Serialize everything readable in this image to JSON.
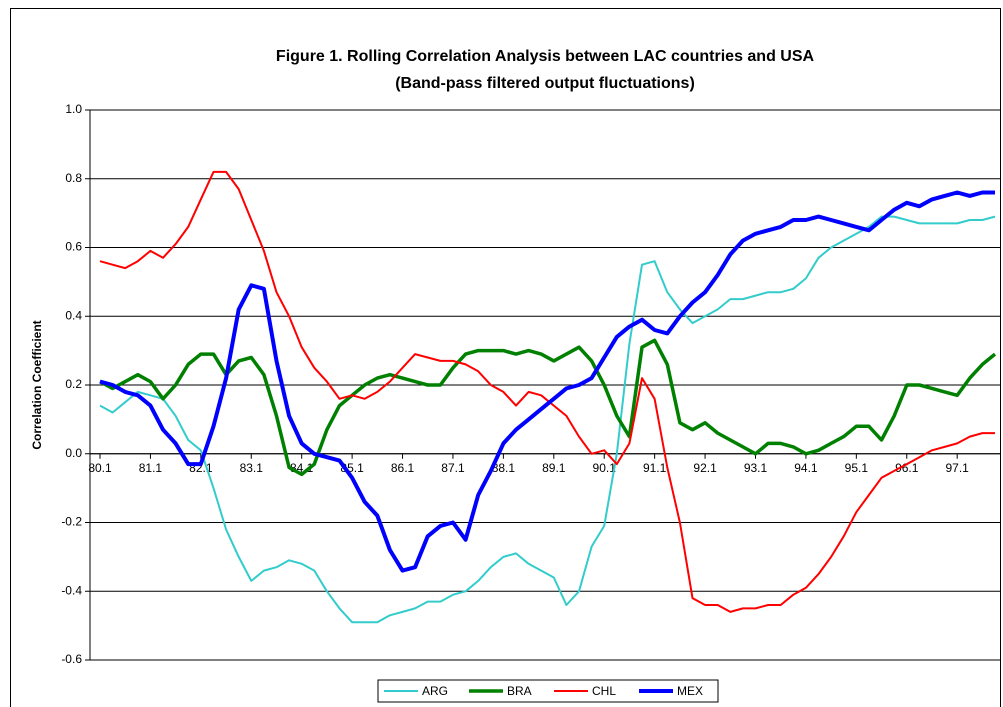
{
  "chart_data": {
    "type": "line",
    "title": "Figure 1. Rolling Correlation Analysis between LAC countries and USA",
    "subtitle": "(Band-pass filtered output fluctuations)",
    "y_label": "Correlation Coefficient",
    "categories": [
      "80.1",
      null,
      null,
      null,
      "81.1",
      null,
      null,
      null,
      "82.1",
      null,
      null,
      null,
      "83.1",
      null,
      null,
      null,
      "84.1",
      null,
      null,
      null,
      "85.1",
      null,
      null,
      null,
      "86.1",
      null,
      null,
      null,
      "87.1",
      null,
      null,
      null,
      "88.1",
      null,
      null,
      null,
      "89.1",
      null,
      null,
      null,
      "90.1",
      null,
      null,
      null,
      "91.1",
      null,
      null,
      null,
      "92.1",
      null,
      null,
      null,
      "93.1",
      null,
      null,
      null,
      "94.1",
      null,
      null,
      null,
      "95.1",
      null,
      null,
      null,
      "96.1",
      null,
      null,
      null,
      "97.1",
      null,
      null,
      null
    ],
    "series": [
      {
        "name": "ARG",
        "color": "#33cccc",
        "width": 2,
        "values": [
          0.14,
          0.12,
          0.15,
          0.18,
          0.17,
          0.16,
          0.11,
          0.04,
          0.01,
          -0.1,
          -0.22,
          -0.3,
          -0.37,
          -0.34,
          -0.33,
          -0.31,
          -0.32,
          -0.34,
          -0.4,
          -0.45,
          -0.49,
          -0.49,
          -0.49,
          -0.47,
          -0.46,
          -0.45,
          -0.43,
          -0.43,
          -0.41,
          -0.4,
          -0.37,
          -0.33,
          -0.3,
          -0.29,
          -0.32,
          -0.34,
          -0.36,
          -0.44,
          -0.4,
          -0.27,
          -0.21,
          0.0,
          0.32,
          0.55,
          0.56,
          0.47,
          0.42,
          0.38,
          0.4,
          0.42,
          0.45,
          0.45,
          0.46,
          0.47,
          0.47,
          0.48,
          0.51,
          0.57,
          0.6,
          0.62,
          0.64,
          0.66,
          0.69,
          0.69,
          0.68,
          0.67,
          0.67,
          0.67,
          0.67,
          0.68,
          0.68,
          0.69
        ]
      },
      {
        "name": "BRA",
        "color": "#008000",
        "width": 3.5,
        "values": [
          0.21,
          0.19,
          0.21,
          0.23,
          0.21,
          0.16,
          0.2,
          0.26,
          0.29,
          0.29,
          0.23,
          0.27,
          0.28,
          0.23,
          0.11,
          -0.04,
          -0.06,
          -0.03,
          0.07,
          0.14,
          0.17,
          0.2,
          0.22,
          0.23,
          0.22,
          0.21,
          0.2,
          0.2,
          0.25,
          0.29,
          0.3,
          0.3,
          0.3,
          0.29,
          0.3,
          0.29,
          0.27,
          0.29,
          0.31,
          0.27,
          0.2,
          0.11,
          0.05,
          0.31,
          0.33,
          0.26,
          0.09,
          0.07,
          0.09,
          0.06,
          0.04,
          0.02,
          0.0,
          0.03,
          0.03,
          0.02,
          0.0,
          0.01,
          0.03,
          0.05,
          0.08,
          0.08,
          0.04,
          0.11,
          0.2,
          0.2,
          0.19,
          0.18,
          0.17,
          0.22,
          0.26,
          0.29
        ]
      },
      {
        "name": "CHL",
        "color": "#ff0000",
        "width": 2,
        "values": [
          0.56,
          0.55,
          0.54,
          0.56,
          0.59,
          0.57,
          0.61,
          0.66,
          0.74,
          0.82,
          0.82,
          0.77,
          0.68,
          0.59,
          0.47,
          0.4,
          0.31,
          0.25,
          0.21,
          0.16,
          0.17,
          0.16,
          0.18,
          0.21,
          0.25,
          0.29,
          0.28,
          0.27,
          0.27,
          0.26,
          0.24,
          0.2,
          0.18,
          0.14,
          0.18,
          0.17,
          0.14,
          0.11,
          0.05,
          0.0,
          0.01,
          -0.03,
          0.03,
          0.22,
          0.16,
          -0.04,
          -0.2,
          -0.42,
          -0.44,
          -0.44,
          -0.46,
          -0.45,
          -0.45,
          -0.44,
          -0.44,
          -0.41,
          -0.39,
          -0.35,
          -0.3,
          -0.24,
          -0.17,
          -0.12,
          -0.07,
          -0.05,
          -0.03,
          -0.01,
          0.01,
          0.02,
          0.03,
          0.05,
          0.06,
          0.06
        ]
      },
      {
        "name": "MEX",
        "color": "#0000ff",
        "width": 4,
        "values": [
          0.21,
          0.2,
          0.18,
          0.17,
          0.14,
          0.07,
          0.03,
          -0.03,
          -0.03,
          0.08,
          0.22,
          0.42,
          0.49,
          0.48,
          0.27,
          0.11,
          0.03,
          0.0,
          -0.01,
          -0.02,
          -0.07,
          -0.14,
          -0.18,
          -0.28,
          -0.34,
          -0.33,
          -0.24,
          -0.21,
          -0.2,
          -0.25,
          -0.12,
          -0.05,
          0.03,
          0.07,
          0.1,
          0.13,
          0.16,
          0.19,
          0.2,
          0.22,
          0.28,
          0.34,
          0.37,
          0.39,
          0.36,
          0.35,
          0.4,
          0.44,
          0.47,
          0.52,
          0.58,
          0.62,
          0.64,
          0.65,
          0.66,
          0.68,
          0.68,
          0.69,
          0.68,
          0.67,
          0.66,
          0.65,
          0.68,
          0.71,
          0.73,
          0.72,
          0.74,
          0.75,
          0.76,
          0.75,
          0.76,
          0.76
        ]
      }
    ],
    "ylim": [
      -0.6,
      1.0
    ],
    "yticks": [
      {
        "value": -0.6,
        "label": "-0.6"
      },
      {
        "value": -0.4,
        "label": "-0.4"
      },
      {
        "value": -0.2,
        "label": "-0.2"
      },
      {
        "value": 0,
        "label": "0.0"
      },
      {
        "value": 0.2,
        "label": "0.2"
      },
      {
        "value": 0.4,
        "label": "0.4"
      },
      {
        "value": 0.6,
        "label": "0.6"
      },
      {
        "value": 0.8,
        "label": "0.8"
      },
      {
        "value": 1.0,
        "label": "1.0"
      }
    ],
    "grid": true,
    "legend": "bottom"
  }
}
